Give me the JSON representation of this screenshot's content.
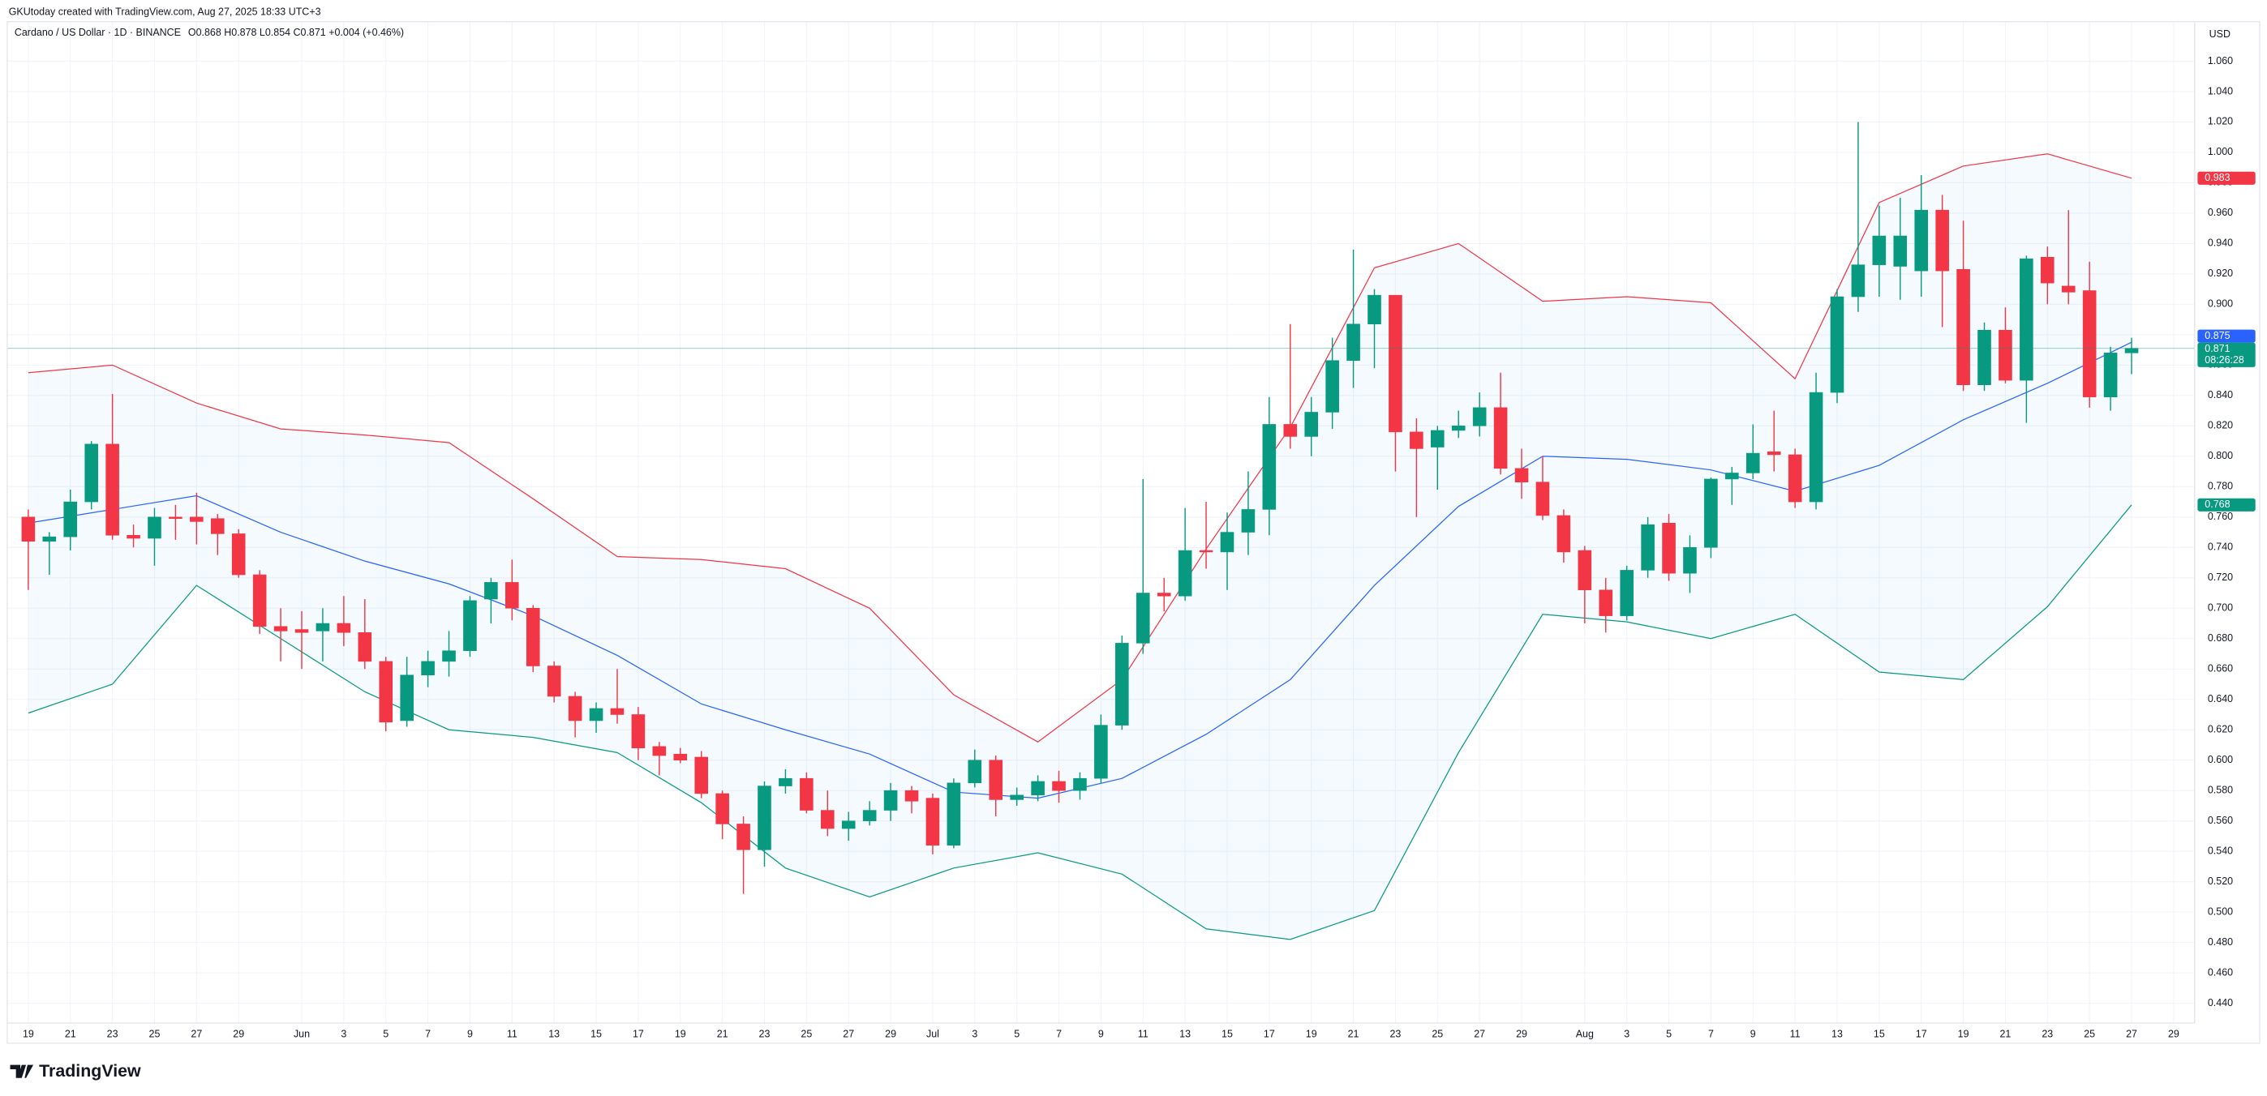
{
  "header": "GKUtoday created with TradingView.com, Aug 27, 2025 18:33 UTC+3",
  "footer": "TradingView",
  "chart_data": {
    "type": "candlestick",
    "legend": {
      "symbol": "Cardano / US Dollar · 1D · BINANCE",
      "ohlc": "O0.868 H0.878 L0.854 C0.871 +0.004 (+0.46%)"
    },
    "currency": "USD",
    "x": [
      "2025-05-19",
      "2025-05-20",
      "2025-05-21",
      "2025-05-22",
      "2025-05-23",
      "2025-05-24",
      "2025-05-25",
      "2025-05-26",
      "2025-05-27",
      "2025-05-28",
      "2025-05-29",
      "2025-05-30",
      "2025-05-31",
      "2025-06-01",
      "2025-06-02",
      "2025-06-03",
      "2025-06-04",
      "2025-06-05",
      "2025-06-06",
      "2025-06-07",
      "2025-06-08",
      "2025-06-09",
      "2025-06-10",
      "2025-06-11",
      "2025-06-12",
      "2025-06-13",
      "2025-06-14",
      "2025-06-15",
      "2025-06-16",
      "2025-06-17",
      "2025-06-18",
      "2025-06-19",
      "2025-06-20",
      "2025-06-21",
      "2025-06-22",
      "2025-06-23",
      "2025-06-24",
      "2025-06-25",
      "2025-06-26",
      "2025-06-27",
      "2025-06-28",
      "2025-06-29",
      "2025-06-30",
      "2025-07-01",
      "2025-07-02",
      "2025-07-03",
      "2025-07-04",
      "2025-07-05",
      "2025-07-06",
      "2025-07-07",
      "2025-07-08",
      "2025-07-09",
      "2025-07-10",
      "2025-07-11",
      "2025-07-12",
      "2025-07-13",
      "2025-07-14",
      "2025-07-15",
      "2025-07-16",
      "2025-07-17",
      "2025-07-18",
      "2025-07-19",
      "2025-07-20",
      "2025-07-21",
      "2025-07-22",
      "2025-07-23",
      "2025-07-24",
      "2025-07-25",
      "2025-07-26",
      "2025-07-27",
      "2025-07-28",
      "2025-07-29",
      "2025-07-30",
      "2025-07-31",
      "2025-08-01",
      "2025-08-02",
      "2025-08-03",
      "2025-08-04",
      "2025-08-05",
      "2025-08-06",
      "2025-08-07",
      "2025-08-08",
      "2025-08-09",
      "2025-08-10",
      "2025-08-11",
      "2025-08-12",
      "2025-08-13",
      "2025-08-14",
      "2025-08-15",
      "2025-08-16",
      "2025-08-17",
      "2025-08-18",
      "2025-08-19",
      "2025-08-20",
      "2025-08-21",
      "2025-08-22",
      "2025-08-23",
      "2025-08-24",
      "2025-08-25",
      "2025-08-26",
      "2025-08-27"
    ],
    "open": [
      0.76,
      0.744,
      0.747,
      0.77,
      0.808,
      0.748,
      0.746,
      0.76,
      0.76,
      0.759,
      0.749,
      0.722,
      0.688,
      0.686,
      0.685,
      0.69,
      0.684,
      0.665,
      0.626,
      0.656,
      0.665,
      0.672,
      0.706,
      0.717,
      0.7,
      0.662,
      0.642,
      0.626,
      0.634,
      0.63,
      0.609,
      0.604,
      0.602,
      0.578,
      0.558,
      0.541,
      0.583,
      0.588,
      0.567,
      0.555,
      0.56,
      0.567,
      0.58,
      0.575,
      0.544,
      0.585,
      0.6,
      0.574,
      0.577,
      0.586,
      0.58,
      0.588,
      0.623,
      0.677,
      0.71,
      0.708,
      0.738,
      0.737,
      0.75,
      0.765,
      0.821,
      0.813,
      0.829,
      0.863,
      0.887,
      0.906,
      0.816,
      0.806,
      0.817,
      0.82,
      0.832,
      0.792,
      0.783,
      0.761,
      0.738,
      0.712,
      0.695,
      0.725,
      0.756,
      0.723,
      0.74,
      0.785,
      0.789,
      0.803,
      0.801,
      0.77,
      0.842,
      0.905,
      0.926,
      0.925,
      0.922,
      0.962,
      0.923,
      0.847,
      0.883,
      0.85,
      0.931,
      0.912,
      0.909,
      0.839,
      0.868
    ],
    "high": [
      0.765,
      0.75,
      0.778,
      0.81,
      0.841,
      0.755,
      0.766,
      0.768,
      0.776,
      0.762,
      0.752,
      0.725,
      0.7,
      0.698,
      0.7,
      0.708,
      0.706,
      0.668,
      0.668,
      0.672,
      0.685,
      0.708,
      0.72,
      0.732,
      0.702,
      0.665,
      0.645,
      0.638,
      0.66,
      0.635,
      0.612,
      0.608,
      0.606,
      0.58,
      0.563,
      0.586,
      0.594,
      0.592,
      0.58,
      0.566,
      0.573,
      0.585,
      0.583,
      0.578,
      0.588,
      0.607,
      0.603,
      0.582,
      0.59,
      0.593,
      0.592,
      0.63,
      0.682,
      0.785,
      0.72,
      0.766,
      0.77,
      0.763,
      0.79,
      0.839,
      0.887,
      0.839,
      0.878,
      0.936,
      0.91,
      0.906,
      0.825,
      0.82,
      0.83,
      0.842,
      0.855,
      0.805,
      0.8,
      0.765,
      0.741,
      0.72,
      0.728,
      0.76,
      0.762,
      0.748,
      0.786,
      0.793,
      0.821,
      0.83,
      0.805,
      0.855,
      0.91,
      1.02,
      0.965,
      0.97,
      0.985,
      0.972,
      0.955,
      0.888,
      0.898,
      0.932,
      0.938,
      0.962,
      0.928,
      0.872,
      0.878
    ],
    "low": [
      0.712,
      0.722,
      0.738,
      0.765,
      0.745,
      0.74,
      0.728,
      0.745,
      0.742,
      0.735,
      0.72,
      0.683,
      0.665,
      0.66,
      0.665,
      0.675,
      0.66,
      0.619,
      0.622,
      0.648,
      0.655,
      0.668,
      0.69,
      0.692,
      0.658,
      0.638,
      0.615,
      0.618,
      0.624,
      0.6,
      0.59,
      0.598,
      0.575,
      0.548,
      0.512,
      0.53,
      0.578,
      0.565,
      0.55,
      0.547,
      0.557,
      0.56,
      0.565,
      0.538,
      0.542,
      0.582,
      0.563,
      0.57,
      0.573,
      0.572,
      0.574,
      0.585,
      0.62,
      0.67,
      0.698,
      0.705,
      0.726,
      0.712,
      0.735,
      0.748,
      0.805,
      0.8,
      0.818,
      0.845,
      0.858,
      0.79,
      0.76,
      0.778,
      0.812,
      0.813,
      0.788,
      0.772,
      0.758,
      0.73,
      0.69,
      0.684,
      0.692,
      0.72,
      0.718,
      0.71,
      0.733,
      0.768,
      0.785,
      0.79,
      0.766,
      0.765,
      0.835,
      0.895,
      0.905,
      0.903,
      0.905,
      0.885,
      0.843,
      0.843,
      0.848,
      0.822,
      0.9,
      0.9,
      0.832,
      0.83,
      0.854
    ],
    "close": [
      0.744,
      0.747,
      0.77,
      0.808,
      0.748,
      0.746,
      0.76,
      0.759,
      0.757,
      0.749,
      0.722,
      0.688,
      0.685,
      0.684,
      0.69,
      0.684,
      0.665,
      0.625,
      0.656,
      0.665,
      0.672,
      0.705,
      0.717,
      0.7,
      0.662,
      0.642,
      0.626,
      0.634,
      0.63,
      0.608,
      0.603,
      0.6,
      0.578,
      0.558,
      0.541,
      0.583,
      0.588,
      0.567,
      0.555,
      0.56,
      0.567,
      0.58,
      0.573,
      0.544,
      0.585,
      0.6,
      0.574,
      0.577,
      0.586,
      0.58,
      0.588,
      0.623,
      0.677,
      0.71,
      0.708,
      0.738,
      0.737,
      0.75,
      0.765,
      0.821,
      0.813,
      0.829,
      0.863,
      0.887,
      0.906,
      0.816,
      0.805,
      0.817,
      0.82,
      0.832,
      0.792,
      0.783,
      0.761,
      0.737,
      0.712,
      0.695,
      0.725,
      0.755,
      0.723,
      0.74,
      0.785,
      0.789,
      0.802,
      0.801,
      0.77,
      0.842,
      0.905,
      0.926,
      0.945,
      0.945,
      0.962,
      0.922,
      0.847,
      0.883,
      0.85,
      0.93,
      0.914,
      0.908,
      0.839,
      0.868,
      0.871
    ],
    "up_color": "#089981",
    "down_color": "#f23645",
    "bollinger": {
      "x": [
        "2025-05-19",
        "2025-05-23",
        "2025-05-27",
        "2025-05-31",
        "2025-06-04",
        "2025-06-08",
        "2025-06-12",
        "2025-06-16",
        "2025-06-20",
        "2025-06-24",
        "2025-06-28",
        "2025-07-02",
        "2025-07-06",
        "2025-07-10",
        "2025-07-14",
        "2025-07-18",
        "2025-07-22",
        "2025-07-26",
        "2025-07-30",
        "2025-08-03",
        "2025-08-07",
        "2025-08-11",
        "2025-08-15",
        "2025-08-19",
        "2025-08-23",
        "2025-08-27"
      ],
      "upper": [
        0.855,
        0.86,
        0.835,
        0.818,
        0.814,
        0.809,
        0.772,
        0.734,
        0.732,
        0.726,
        0.7,
        0.643,
        0.612,
        0.653,
        0.739,
        0.819,
        0.924,
        0.94,
        0.902,
        0.905,
        0.901,
        0.851,
        0.967,
        0.991,
        0.999,
        0.983
      ],
      "basis": [
        0.756,
        0.765,
        0.774,
        0.75,
        0.731,
        0.716,
        0.695,
        0.669,
        0.637,
        0.62,
        0.604,
        0.579,
        0.575,
        0.588,
        0.617,
        0.653,
        0.715,
        0.767,
        0.8,
        0.798,
        0.791,
        0.777,
        0.794,
        0.824,
        0.848,
        0.875
      ],
      "lower": [
        0.631,
        0.65,
        0.715,
        0.68,
        0.645,
        0.62,
        0.615,
        0.605,
        0.572,
        0.529,
        0.51,
        0.529,
        0.539,
        0.525,
        0.489,
        0.482,
        0.501,
        0.605,
        0.696,
        0.691,
        0.68,
        0.696,
        0.658,
        0.653,
        0.701,
        0.768
      ],
      "upper_color": "#f23645",
      "basis_color": "#2962ff",
      "lower_color": "#089981",
      "fill_color": "#2196f3"
    },
    "price_labels": [
      {
        "value": 0.983,
        "label": "0.983",
        "color": "#f23645"
      },
      {
        "value": 0.875,
        "label": "0.875",
        "color": "#2962ff"
      },
      {
        "value": 0.871,
        "label": "0.871",
        "sublabel": "08:26:28",
        "color": "#089981"
      },
      {
        "value": 0.768,
        "label": "0.768",
        "color": "#089981"
      }
    ],
    "xlim": [
      "2025-05-18",
      "2025-08-30"
    ],
    "xticks": [
      {
        "value": "2025-05-19",
        "label": "19"
      },
      {
        "value": "2025-05-21",
        "label": "21"
      },
      {
        "value": "2025-05-23",
        "label": "23"
      },
      {
        "value": "2025-05-25",
        "label": "25"
      },
      {
        "value": "2025-05-27",
        "label": "27"
      },
      {
        "value": "2025-05-29",
        "label": "29"
      },
      {
        "value": "2025-06-01",
        "label": "Jun"
      },
      {
        "value": "2025-06-03",
        "label": "3"
      },
      {
        "value": "2025-06-05",
        "label": "5"
      },
      {
        "value": "2025-06-07",
        "label": "7"
      },
      {
        "value": "2025-06-09",
        "label": "9"
      },
      {
        "value": "2025-06-11",
        "label": "11"
      },
      {
        "value": "2025-06-13",
        "label": "13"
      },
      {
        "value": "2025-06-15",
        "label": "15"
      },
      {
        "value": "2025-06-17",
        "label": "17"
      },
      {
        "value": "2025-06-19",
        "label": "19"
      },
      {
        "value": "2025-06-21",
        "label": "21"
      },
      {
        "value": "2025-06-23",
        "label": "23"
      },
      {
        "value": "2025-06-25",
        "label": "25"
      },
      {
        "value": "2025-06-27",
        "label": "27"
      },
      {
        "value": "2025-06-29",
        "label": "29"
      },
      {
        "value": "2025-07-01",
        "label": "Jul"
      },
      {
        "value": "2025-07-03",
        "label": "3"
      },
      {
        "value": "2025-07-05",
        "label": "5"
      },
      {
        "value": "2025-07-07",
        "label": "7"
      },
      {
        "value": "2025-07-09",
        "label": "9"
      },
      {
        "value": "2025-07-11",
        "label": "11"
      },
      {
        "value": "2025-07-13",
        "label": "13"
      },
      {
        "value": "2025-07-15",
        "label": "15"
      },
      {
        "value": "2025-07-17",
        "label": "17"
      },
      {
        "value": "2025-07-19",
        "label": "19"
      },
      {
        "value": "2025-07-21",
        "label": "21"
      },
      {
        "value": "2025-07-23",
        "label": "23"
      },
      {
        "value": "2025-07-25",
        "label": "25"
      },
      {
        "value": "2025-07-27",
        "label": "27"
      },
      {
        "value": "2025-07-29",
        "label": "29"
      },
      {
        "value": "2025-08-01",
        "label": "Aug"
      },
      {
        "value": "2025-08-03",
        "label": "3"
      },
      {
        "value": "2025-08-05",
        "label": "5"
      },
      {
        "value": "2025-08-07",
        "label": "7"
      },
      {
        "value": "2025-08-09",
        "label": "9"
      },
      {
        "value": "2025-08-11",
        "label": "11"
      },
      {
        "value": "2025-08-13",
        "label": "13"
      },
      {
        "value": "2025-08-15",
        "label": "15"
      },
      {
        "value": "2025-08-17",
        "label": "17"
      },
      {
        "value": "2025-08-19",
        "label": "19"
      },
      {
        "value": "2025-08-21",
        "label": "21"
      },
      {
        "value": "2025-08-23",
        "label": "23"
      },
      {
        "value": "2025-08-25",
        "label": "25"
      },
      {
        "value": "2025-08-27",
        "label": "27"
      },
      {
        "value": "2025-08-29",
        "label": "29"
      }
    ],
    "ylim": [
      0.427,
      1.086
    ],
    "yticks": [
      {
        "value": 0.44,
        "label": "0.440"
      },
      {
        "value": 0.46,
        "label": "0.460"
      },
      {
        "value": 0.48,
        "label": "0.480"
      },
      {
        "value": 0.5,
        "label": "0.500"
      },
      {
        "value": 0.52,
        "label": "0.520"
      },
      {
        "value": 0.54,
        "label": "0.540"
      },
      {
        "value": 0.56,
        "label": "0.560"
      },
      {
        "value": 0.58,
        "label": "0.580"
      },
      {
        "value": 0.6,
        "label": "0.600"
      },
      {
        "value": 0.62,
        "label": "0.620"
      },
      {
        "value": 0.64,
        "label": "0.640"
      },
      {
        "value": 0.66,
        "label": "0.660"
      },
      {
        "value": 0.68,
        "label": "0.680"
      },
      {
        "value": 0.7,
        "label": "0.700"
      },
      {
        "value": 0.72,
        "label": "0.720"
      },
      {
        "value": 0.74,
        "label": "0.740"
      },
      {
        "value": 0.76,
        "label": "0.760"
      },
      {
        "value": 0.78,
        "label": "0.780"
      },
      {
        "value": 0.8,
        "label": "0.800"
      },
      {
        "value": 0.82,
        "label": "0.820"
      },
      {
        "value": 0.84,
        "label": "0.840"
      },
      {
        "value": 0.86,
        "label": "0.860"
      },
      {
        "value": 0.88,
        "label": "0.880"
      },
      {
        "value": 0.9,
        "label": "0.900"
      },
      {
        "value": 0.92,
        "label": "0.920"
      },
      {
        "value": 0.94,
        "label": "0.940"
      },
      {
        "value": 0.96,
        "label": "0.960"
      },
      {
        "value": 0.98,
        "label": "0.980"
      },
      {
        "value": 1.0,
        "label": "1.000"
      },
      {
        "value": 1.02,
        "label": "1.020"
      },
      {
        "value": 1.04,
        "label": "1.040"
      },
      {
        "value": 1.06,
        "label": "1.060"
      }
    ],
    "grid": true
  }
}
